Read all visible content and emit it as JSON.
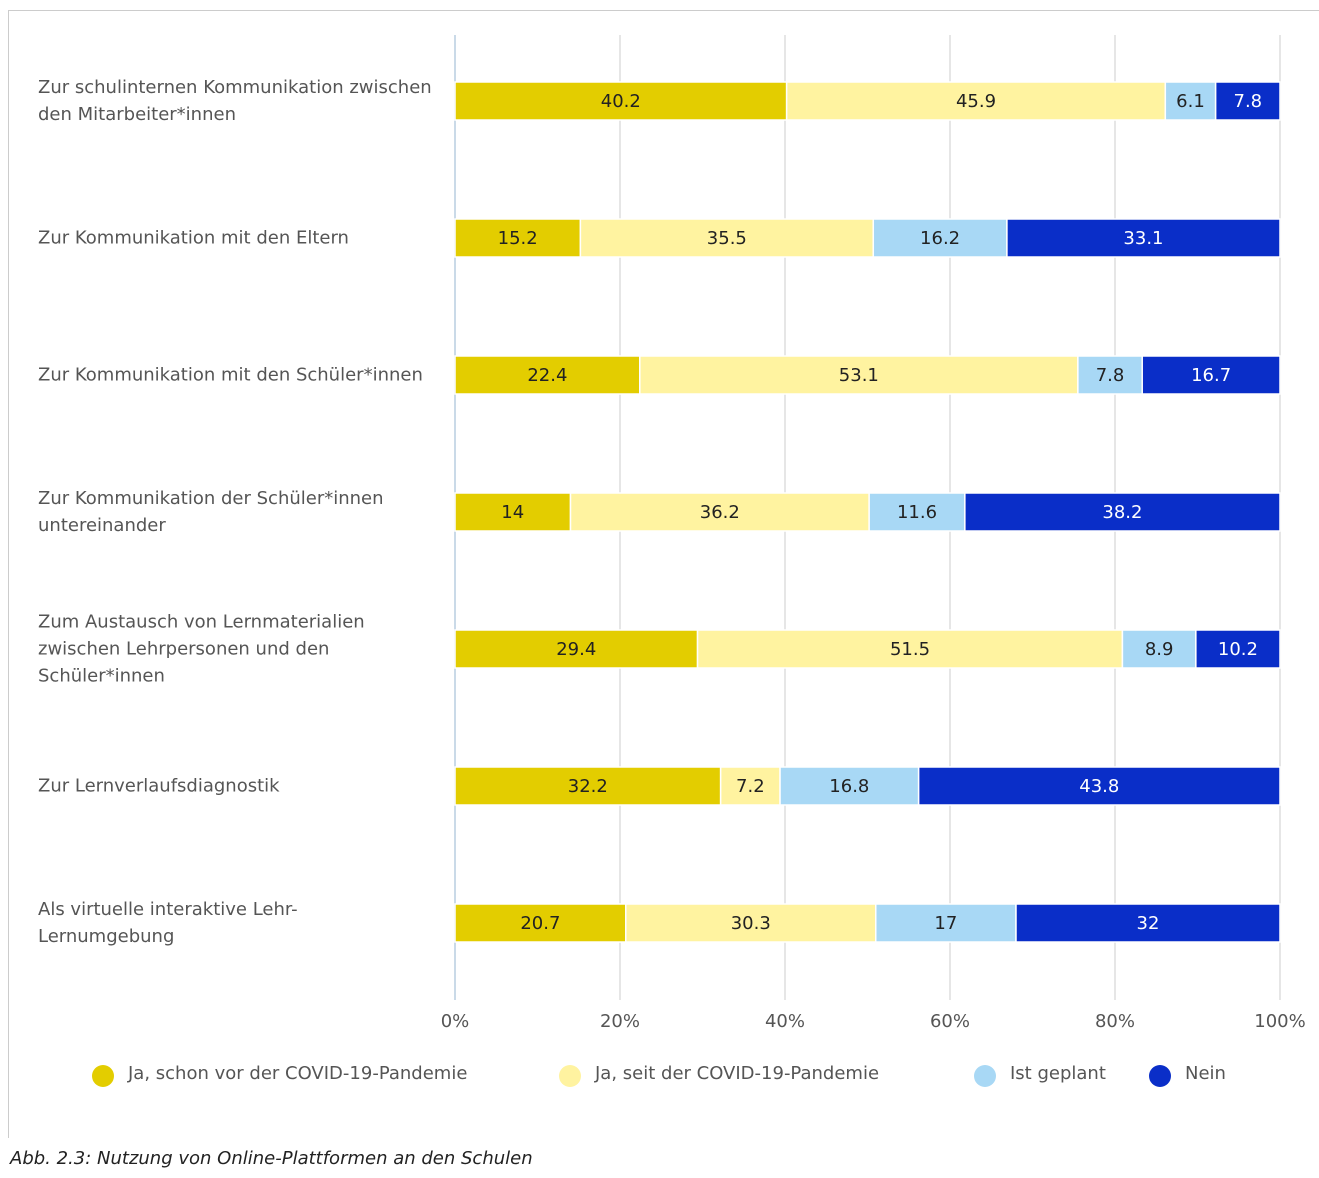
{
  "chart_data": {
    "type": "stacked_barh",
    "caption": "Abb. 2.3: Nutzung von Online-Plattformen an den Schulen",
    "categories": [
      "Zur schulinternen Kommunikation zwischen den Mitarbeiter*innen",
      "Zur Kommunikation mit den Eltern",
      "Zur Kommunikation mit den Schüler*innen",
      "Zur Kommunikation der Schüler*innen untereinander",
      "Zum Austausch von Lernmaterialien zwischen Lehrpersonen und den Schüler*innen",
      "Zur Lernverlaufsdiagnostik",
      "Als virtuelle interaktive Lehr-Lernumgebung"
    ],
    "series": [
      {
        "name": "Ja, schon vor der COVID-19-Pandemie",
        "color": "#e3cd00",
        "label_color": "#222222",
        "values": [
          40.2,
          15.2,
          22.4,
          14,
          29.4,
          32.2,
          20.7
        ]
      },
      {
        "name": "Ja, seit der COVID-19-Pandemie",
        "color": "#fff3a0",
        "label_color": "#222222",
        "values": [
          45.9,
          35.5,
          53.1,
          36.2,
          51.5,
          7.2,
          30.3
        ]
      },
      {
        "name": "Ist geplant",
        "color": "#a8d8f5",
        "label_color": "#222222",
        "values": [
          6.1,
          16.2,
          7.8,
          11.6,
          8.9,
          16.8,
          17
        ]
      },
      {
        "name": "Nein",
        "color": "#0a2ec8",
        "label_color": "#ffffff",
        "values": [
          7.8,
          33.1,
          16.7,
          38.2,
          10.2,
          43.8,
          32
        ]
      }
    ],
    "xlim": [
      0,
      100
    ],
    "xticks": [
      {
        "value": 0,
        "label": "0%"
      },
      {
        "value": 20,
        "label": "20%"
      },
      {
        "value": 40,
        "label": "40%"
      },
      {
        "value": 60,
        "label": "60%"
      },
      {
        "value": 80,
        "label": "80%"
      },
      {
        "value": 100,
        "label": "100%"
      }
    ],
    "grid": true
  }
}
